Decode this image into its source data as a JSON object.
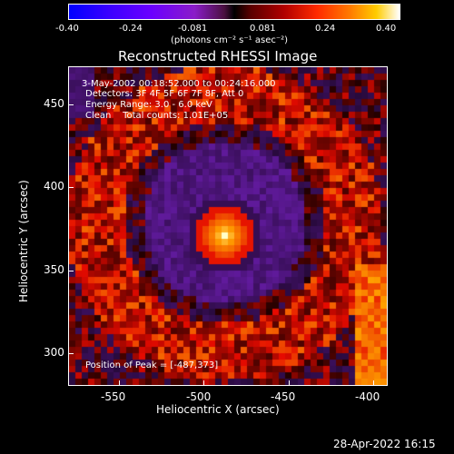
{
  "colorbar": {
    "ticks": [
      "-0.40",
      "-0.24",
      "-0.081",
      "0.081",
      "0.24",
      "0.40"
    ],
    "units": "(photons cm⁻² s⁻¹ asec⁻²)"
  },
  "title": "Reconstructed RHESSI Image",
  "annotations": {
    "time": "3-May-2002 00:18:52.000 to 00:24:16.000",
    "detectors": "Detectors: 3F 4F 5F 6F 7F 8F, Att 0",
    "energy": "Energy Range: 3.0 - 6.0 keV",
    "clean": "Clean    Total counts: 1.01E+05",
    "peak": "Position of Peak = [-487,373]"
  },
  "axes": {
    "xlabel": "Heliocentric X (arcsec)",
    "ylabel": "Heliocentric Y (arcsec)",
    "xticks": [
      "-550",
      "-500",
      "-450",
      "-400"
    ],
    "yticks": [
      "450",
      "400",
      "350",
      "300"
    ],
    "xlim": [
      -580,
      -395
    ],
    "ylim": [
      283,
      468
    ]
  },
  "footer": "28-Apr-2022 16:15"
}
